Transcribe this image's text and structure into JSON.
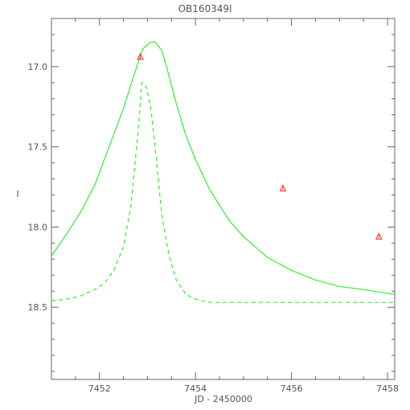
{
  "chart_data": {
    "type": "line",
    "title": "OB160349l",
    "xlabel": "JD - 2450000",
    "ylabel": "I",
    "xlim": [
      7451.0,
      7458.15
    ],
    "ylim": [
      18.95,
      16.7
    ],
    "y_inverted": true,
    "xticks": [
      7452,
      7454,
      7456,
      7458
    ],
    "xtick_labels": [
      "7452",
      "7454",
      "7456",
      "7458"
    ],
    "yticks": [
      17.0,
      17.5,
      18.0,
      18.5
    ],
    "ytick_labels": [
      "17.0",
      "17.5",
      "18.0",
      "18.5"
    ],
    "grid": false,
    "series": [
      {
        "style": "solid",
        "color": "#33ee33",
        "x": [
          7451.0,
          7451.3,
          7451.6,
          7451.9,
          7452.2,
          7452.5,
          7452.7,
          7452.9,
          7453.05,
          7453.15,
          7453.3,
          7453.45,
          7453.6,
          7453.8,
          7454.0,
          7454.3,
          7454.7,
          7455.0,
          7455.5,
          7456.0,
          7456.5,
          7457.0,
          7457.5,
          7458.15
        ],
        "y": [
          18.18,
          18.05,
          17.91,
          17.74,
          17.5,
          17.26,
          17.07,
          16.89,
          16.85,
          16.845,
          16.9,
          17.06,
          17.23,
          17.43,
          17.58,
          17.77,
          17.96,
          18.06,
          18.19,
          18.27,
          18.33,
          18.37,
          18.39,
          18.42
        ]
      },
      {
        "style": "dashed",
        "color": "#33ee33",
        "x": [
          7451.0,
          7451.3,
          7451.6,
          7451.9,
          7452.1,
          7452.3,
          7452.5,
          7452.65,
          7452.8,
          7452.88,
          7452.98,
          7453.08,
          7453.18,
          7453.3,
          7453.45,
          7453.6,
          7453.8,
          7454.0,
          7454.3,
          7454.7,
          7455.0,
          7455.5,
          7456.5,
          7457.5,
          7458.15
        ],
        "y": [
          18.46,
          18.45,
          18.43,
          18.39,
          18.35,
          18.27,
          18.12,
          17.88,
          17.42,
          17.1,
          17.13,
          17.28,
          17.57,
          17.93,
          18.18,
          18.33,
          18.42,
          18.45,
          18.47,
          18.47,
          18.47,
          18.47,
          18.47,
          18.47,
          18.47
        ]
      }
    ],
    "points": {
      "marker": "triangle",
      "color": "#ee3333",
      "x": [
        7452.85,
        7455.82,
        7457.82
      ],
      "y": [
        16.94,
        17.76,
        18.06
      ]
    }
  }
}
